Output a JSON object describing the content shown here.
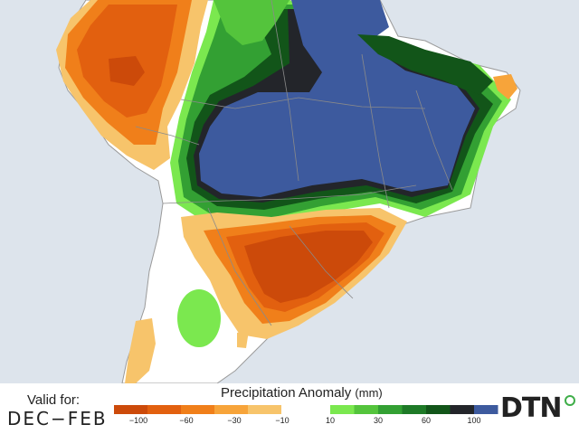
{
  "legend": {
    "title": "Precipitation Anomaly",
    "unit": "(mm)",
    "dry_colors": [
      "#cc4a0a",
      "#e2600f",
      "#f07f1a",
      "#f7a43a",
      "#f7c46b"
    ],
    "wet_colors": [
      "#7be84f",
      "#54c43c",
      "#33a033",
      "#1e7a27",
      "#125519",
      "#23252a",
      "#3d5a9e"
    ],
    "dry_ticks": [
      "−100",
      "−60",
      "−30",
      "−10"
    ],
    "wet_ticks": [
      "10",
      "30",
      "60",
      "100"
    ]
  },
  "valid": {
    "label": "Valid for:",
    "value": "DEC−FEB"
  },
  "brand": {
    "name": "DTN"
  },
  "colors": {
    "ocean": "#dde4ec",
    "land": "#ffffff",
    "border": "#8a8a8a"
  }
}
